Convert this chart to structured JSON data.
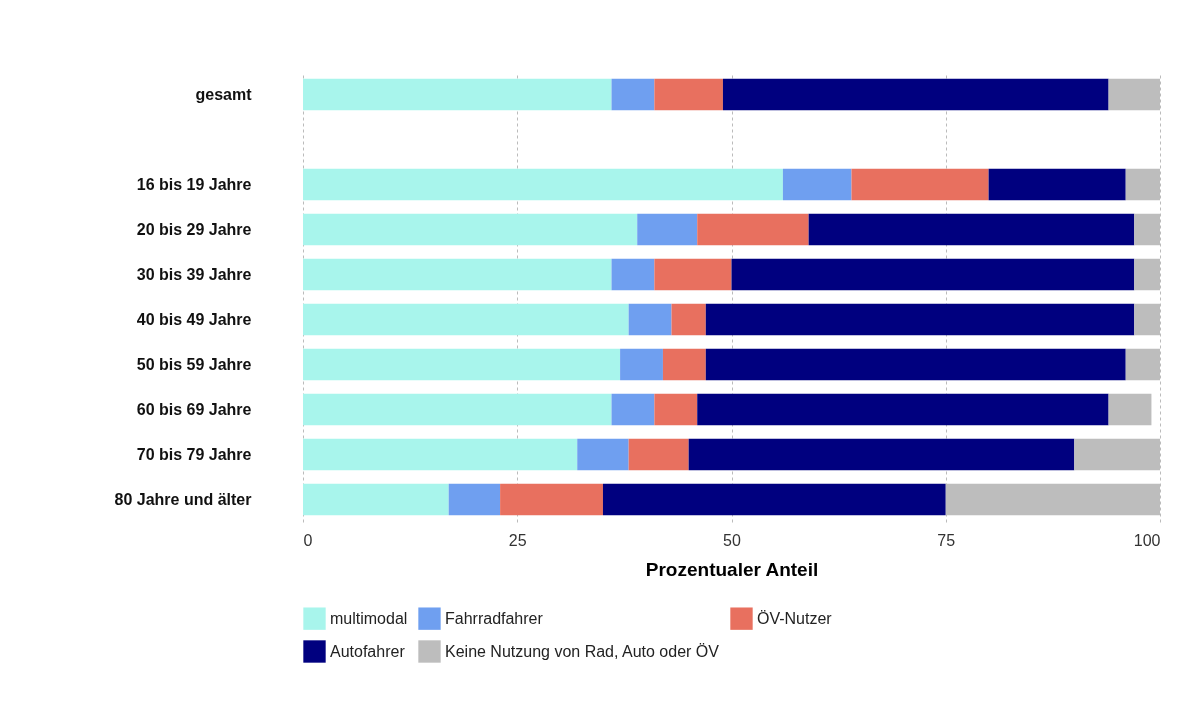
{
  "chart_data": {
    "type": "bar",
    "orientation": "horizontal",
    "stacked": true,
    "xlabel": "Prozentualer Anteil",
    "categories": [
      "gesamt",
      null,
      "16 bis 19 Jahre",
      "20 bis 29 Jahre",
      "30 bis 39 Jahre",
      "40 bis 49 Jahre",
      "50 bis 59 Jahre",
      "60 bis 69 Jahre",
      "70 bis 79 Jahre",
      "80 Jahre und älter"
    ],
    "series": [
      {
        "name": "multimodal",
        "color": "#a8f5ec",
        "values": [
          36,
          null,
          56,
          39,
          36,
          38,
          37,
          36,
          32,
          17
        ]
      },
      {
        "name": "Fahrradfahrer",
        "color": "#6f9ff0",
        "values": [
          5,
          null,
          8,
          7,
          5,
          5,
          5,
          5,
          6,
          6
        ]
      },
      {
        "name": "ÖV-Nutzer",
        "color": "#e8705f",
        "values": [
          8,
          null,
          16,
          13,
          9,
          4,
          5,
          5,
          7,
          12
        ]
      },
      {
        "name": "Autofahrer",
        "color": "#00007f",
        "values": [
          45,
          null,
          16,
          38,
          47,
          50,
          49,
          48,
          45,
          40
        ]
      },
      {
        "name": "Keine Nutzung von Rad, Auto oder ÖV",
        "color": "#bdbdbd",
        "values": [
          6,
          null,
          4,
          3,
          3,
          3,
          4,
          5,
          10,
          25
        ]
      }
    ],
    "xlim": [
      0,
      100
    ],
    "xticks": [
      0,
      25,
      50,
      75,
      100
    ],
    "grid": "x",
    "legend": "bottom"
  }
}
